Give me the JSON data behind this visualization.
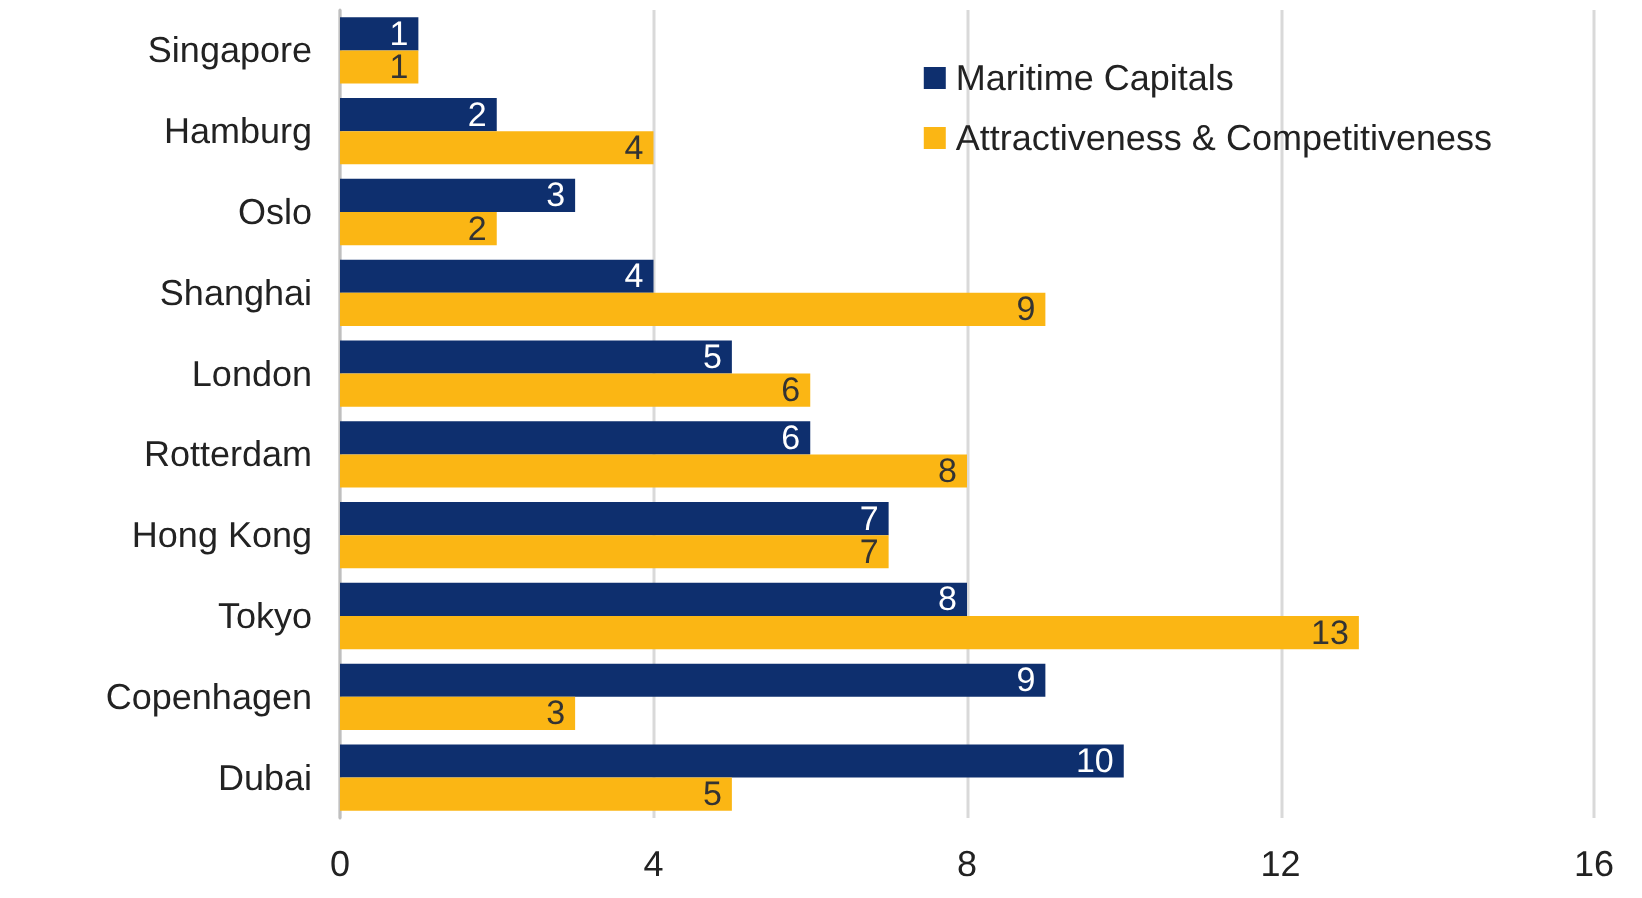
{
  "chart_data": {
    "type": "bar",
    "orientation": "horizontal",
    "categories": [
      "Singapore",
      "Hamburg",
      "Oslo",
      "Shanghai",
      "London",
      "Rotterdam",
      "Hong Kong",
      "Tokyo",
      "Copenhagen",
      "Dubai"
    ],
    "series": [
      {
        "name": "Maritime Capitals",
        "color": "#0e2f6e",
        "values": [
          1,
          2,
          3,
          4,
          5,
          6,
          7,
          8,
          9,
          10
        ]
      },
      {
        "name": "Attractiveness & Competitiveness",
        "color": "#fbb614",
        "values": [
          1,
          4,
          2,
          9,
          6,
          8,
          7,
          13,
          3,
          5
        ]
      }
    ],
    "xlim": [
      0,
      16
    ],
    "xticks": [
      0,
      4,
      8,
      12,
      16
    ],
    "grid": "x",
    "legend": "top right",
    "data_labels": true
  }
}
